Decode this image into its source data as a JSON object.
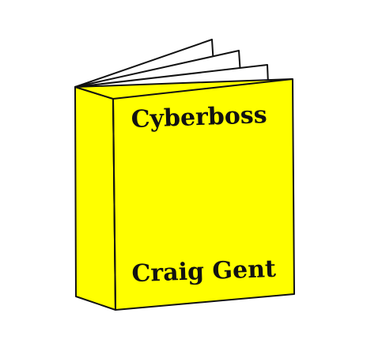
{
  "book": {
    "title": "Cyberboss",
    "author": "Craig Gent",
    "cover_color": "#ffff00",
    "outline_color": "#111111",
    "page_color": "#ffffff",
    "text_color": "#111111"
  }
}
